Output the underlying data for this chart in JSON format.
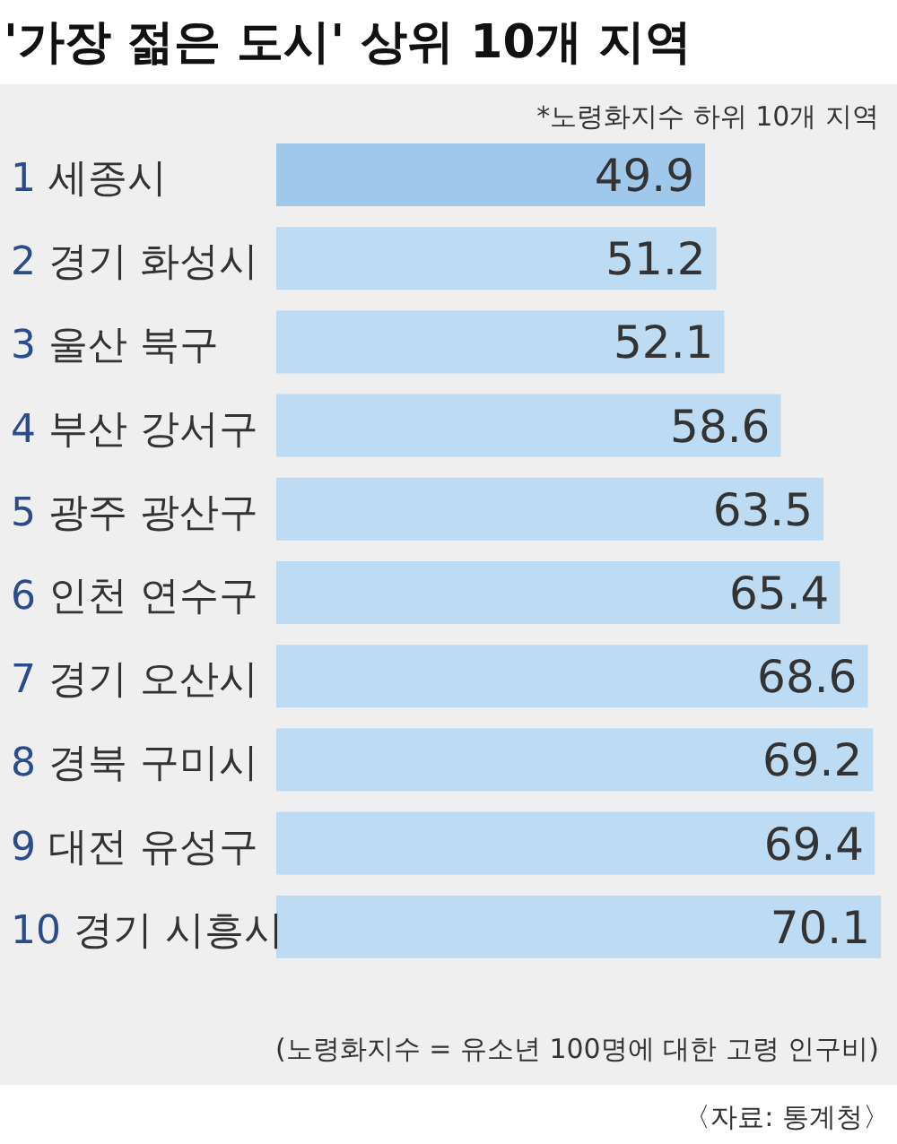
{
  "chart_data": {
    "type": "bar",
    "orientation": "horizontal",
    "title": "'가장 젊은 도시' 상위 10개 지역",
    "categories": [
      "1 세종시",
      "2 경기 화성시",
      "3 울산 북구",
      "4 부산 강서구",
      "5 광주 광산구",
      "6 인천 연수구",
      "7 경기 오산시",
      "8 경북 구미시",
      "9 대전 유성구",
      "10 경기 시흥시"
    ],
    "values": [
      49.9,
      51.2,
      52.1,
      58.6,
      63.5,
      65.4,
      68.6,
      69.2,
      69.4,
      70.1
    ],
    "colors": [
      "#9fc8ea",
      "#bddbf2",
      "#bddbf2",
      "#bddbf2",
      "#bddbf2",
      "#bddbf2",
      "#bddbf2",
      "#bddbf2",
      "#bddbf2",
      "#bddbf2"
    ],
    "data_labels": true,
    "annotations": [
      "*노령화지수 하위 10개 지역",
      "(노령화지수 = 유소년 100명에 대한 고령 인구비)",
      "〈자료: 통계청〉"
    ]
  }
}
